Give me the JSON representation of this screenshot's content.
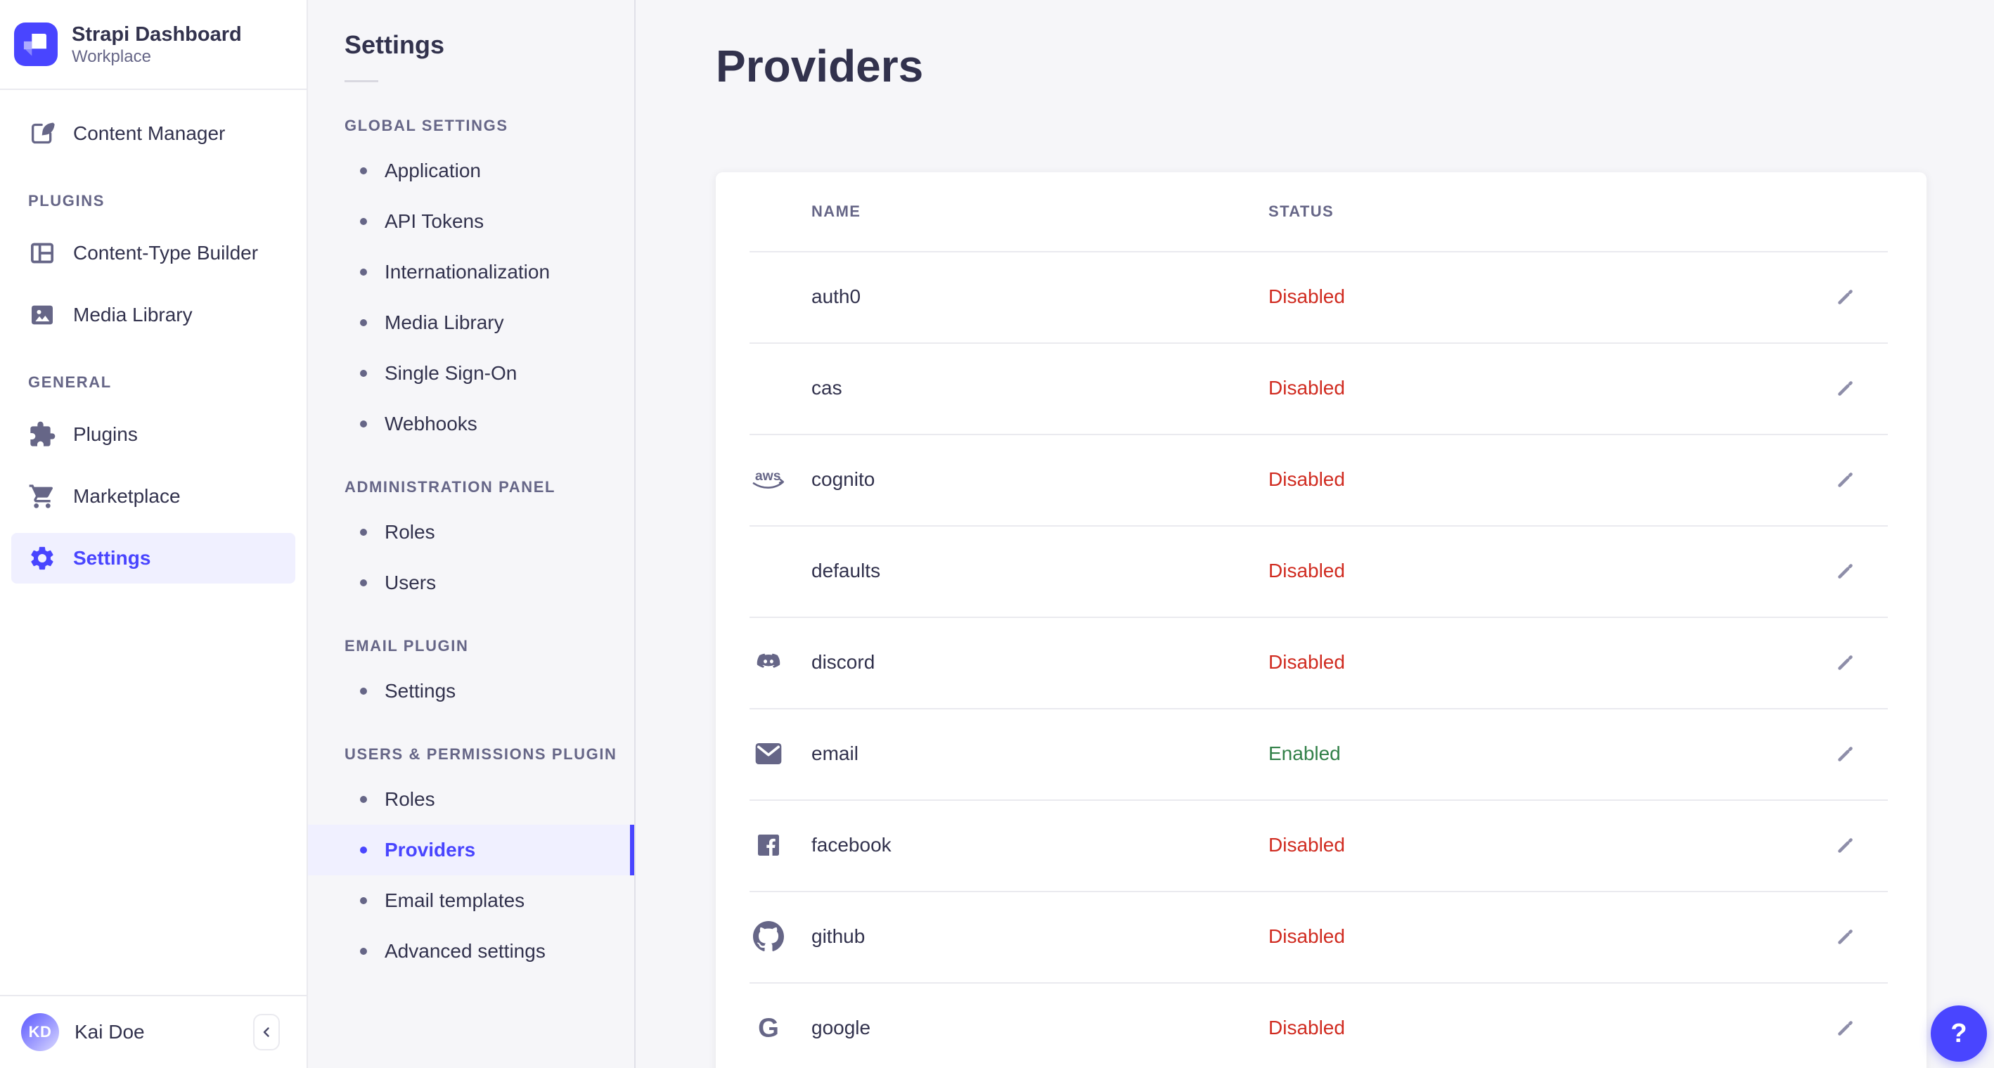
{
  "brand": {
    "title": "Strapi Dashboard",
    "subtitle": "Workplace"
  },
  "sidebar": {
    "primary": [
      {
        "label": "Content Manager",
        "icon": "content-manager-icon",
        "selected": false
      }
    ],
    "sections": [
      {
        "label": "PLUGINS",
        "items": [
          {
            "label": "Content-Type Builder",
            "icon": "content-type-builder-icon",
            "selected": false
          },
          {
            "label": "Media Library",
            "icon": "media-library-icon",
            "selected": false
          }
        ]
      },
      {
        "label": "GENERAL",
        "items": [
          {
            "label": "Plugins",
            "icon": "puzzle-icon",
            "selected": false
          },
          {
            "label": "Marketplace",
            "icon": "cart-icon",
            "selected": false
          },
          {
            "label": "Settings",
            "icon": "gear-icon",
            "selected": true
          }
        ]
      }
    ],
    "user": {
      "initials": "KD",
      "name": "Kai Doe"
    }
  },
  "subnav": {
    "title": "Settings",
    "sections": [
      {
        "label": "GLOBAL SETTINGS",
        "items": [
          {
            "label": "Application"
          },
          {
            "label": "API Tokens"
          },
          {
            "label": "Internationalization"
          },
          {
            "label": "Media Library"
          },
          {
            "label": "Single Sign-On"
          },
          {
            "label": "Webhooks"
          }
        ]
      },
      {
        "label": "ADMINISTRATION PANEL",
        "items": [
          {
            "label": "Roles"
          },
          {
            "label": "Users"
          }
        ]
      },
      {
        "label": "EMAIL PLUGIN",
        "items": [
          {
            "label": "Settings"
          }
        ]
      },
      {
        "label": "USERS & PERMISSIONS PLUGIN",
        "items": [
          {
            "label": "Roles"
          },
          {
            "label": "Providers",
            "selected": true
          },
          {
            "label": "Email templates"
          },
          {
            "label": "Advanced settings"
          }
        ]
      }
    ]
  },
  "main": {
    "title": "Providers",
    "table": {
      "columns": [
        "NAME",
        "STATUS"
      ],
      "edit_icon": "pencil-icon",
      "rows": [
        {
          "name": "auth0",
          "icon": "",
          "status": "Disabled"
        },
        {
          "name": "cas",
          "icon": "",
          "status": "Disabled"
        },
        {
          "name": "cognito",
          "icon": "aws-icon",
          "status": "Disabled"
        },
        {
          "name": "defaults",
          "icon": "",
          "status": "Disabled"
        },
        {
          "name": "discord",
          "icon": "discord-icon",
          "status": "Disabled"
        },
        {
          "name": "email",
          "icon": "email-icon",
          "status": "Enabled"
        },
        {
          "name": "facebook",
          "icon": "facebook-icon",
          "status": "Disabled"
        },
        {
          "name": "github",
          "icon": "github-icon",
          "status": "Disabled"
        },
        {
          "name": "google",
          "icon": "google-icon",
          "status": "Disabled"
        }
      ]
    }
  },
  "help": {
    "label": "?"
  },
  "colors": {
    "accent": "#4945ff",
    "accent_bg": "#f0f0ff",
    "danger": "#d02b20",
    "success": "#328048",
    "text": "#32324d",
    "muted": "#666687",
    "icon_muted": "#8e8ea9",
    "border": "#eaeaef",
    "background": "#f6f6f9"
  }
}
